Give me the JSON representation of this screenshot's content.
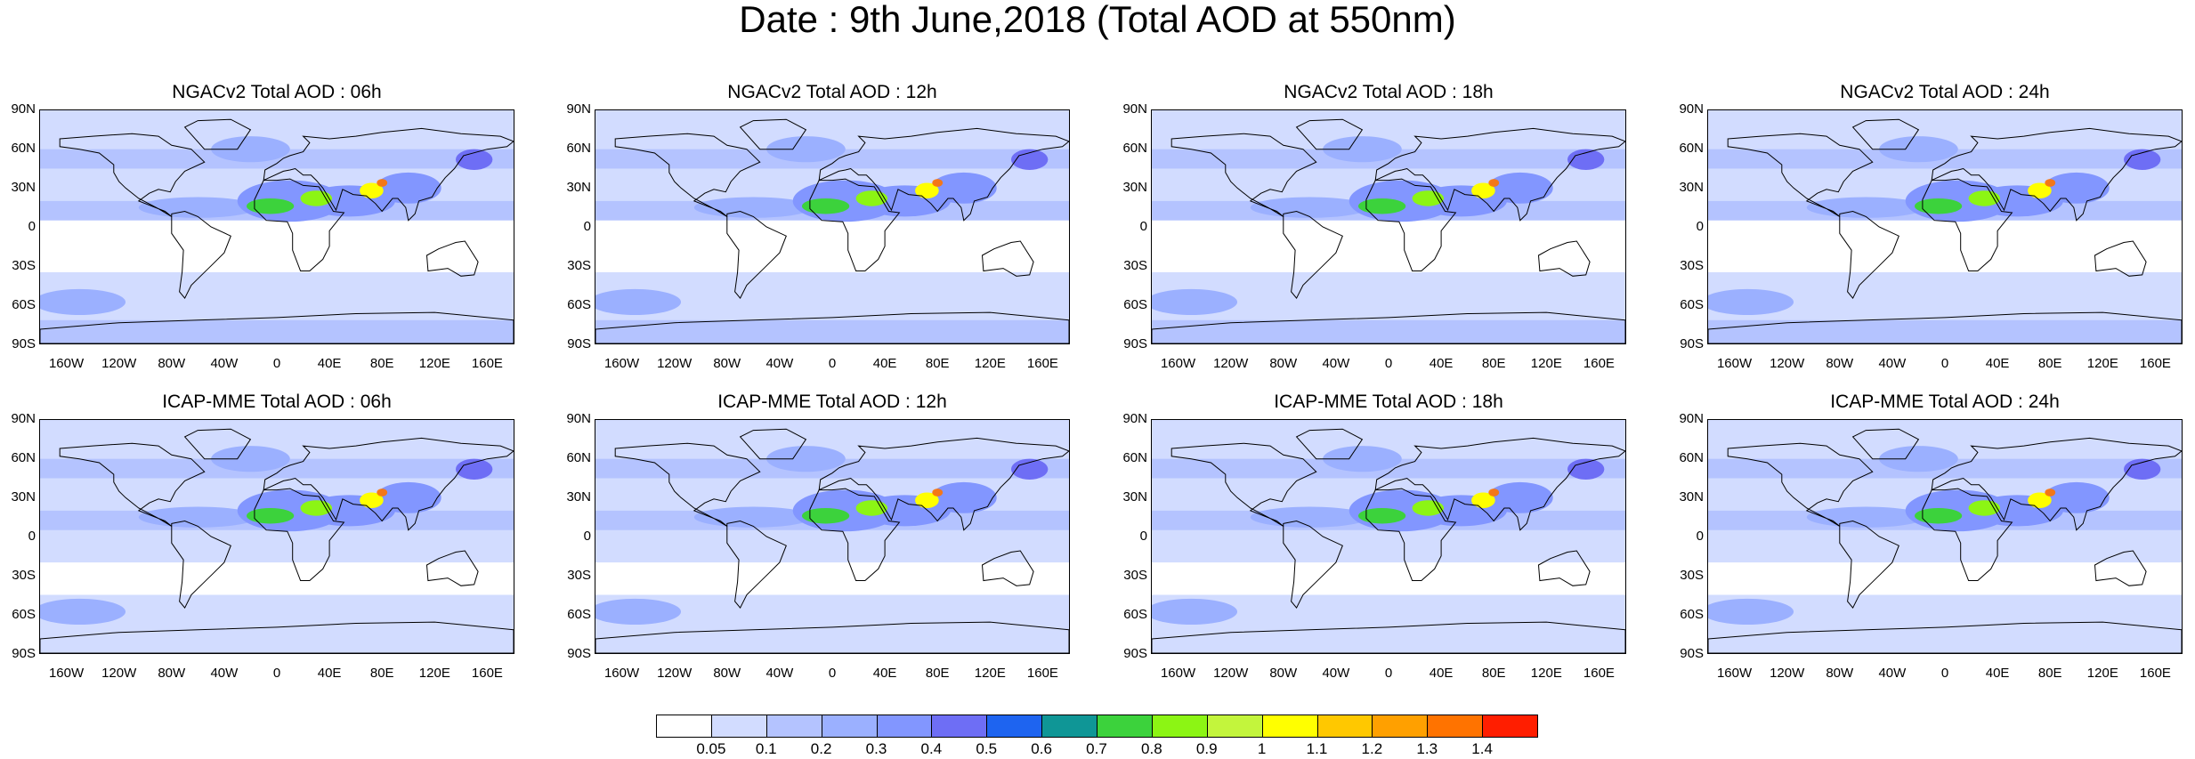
{
  "title": "Date : 9th June,2018 (Total AOD at 550nm)",
  "y_ticks": [
    "90N",
    "60N",
    "30N",
    "0",
    "30S",
    "60S",
    "90S"
  ],
  "x_ticks": [
    "160W",
    "120W",
    "80W",
    "40W",
    "0",
    "40E",
    "80E",
    "120E",
    "160E"
  ],
  "x_tick_lons": [
    -160,
    -120,
    -80,
    -40,
    0,
    40,
    80,
    120,
    160
  ],
  "panels": [
    {
      "title": "NGACv2 Total AOD : 06h",
      "model": "ngac"
    },
    {
      "title": "NGACv2 Total AOD : 12h",
      "model": "ngac"
    },
    {
      "title": "NGACv2 Total AOD : 18h",
      "model": "ngac"
    },
    {
      "title": "NGACv2 Total AOD : 24h",
      "model": "ngac"
    },
    {
      "title": "ICAP-MME Total AOD : 06h",
      "model": "icap"
    },
    {
      "title": "ICAP-MME Total AOD : 12h",
      "model": "icap"
    },
    {
      "title": "ICAP-MME Total AOD : 18h",
      "model": "icap"
    },
    {
      "title": "ICAP-MME Total AOD : 24h",
      "model": "icap"
    }
  ],
  "colorbar": {
    "labels": [
      "0.05",
      "0.1",
      "0.2",
      "0.3",
      "0.4",
      "0.5",
      "0.6",
      "0.7",
      "0.8",
      "0.9",
      "1",
      "1.1",
      "1.2",
      "1.3",
      "1.4"
    ],
    "colors": [
      "#ffffff",
      "#d2dcff",
      "#b4c3ff",
      "#9bb0ff",
      "#8296ff",
      "#6e6ef5",
      "#1e64f0",
      "#0f9696",
      "#3cd23c",
      "#8cf514",
      "#c3f53c",
      "#ffff00",
      "#ffc800",
      "#ffa000",
      "#ff7300",
      "#ff1e00"
    ]
  }
}
